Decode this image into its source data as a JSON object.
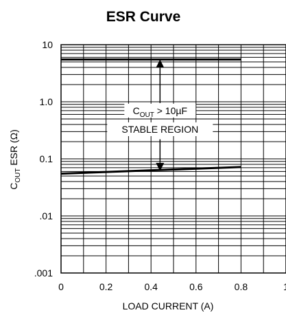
{
  "chart_data": {
    "type": "line",
    "title": "ESR Curve",
    "xlabel": "LOAD CURRENT (A)",
    "ylabel": {
      "main": "C",
      "sub": "OUT",
      "rest": " ESR (Ω)"
    },
    "xlim": [
      0,
      1
    ],
    "ylim": [
      0.001,
      10
    ],
    "yscale": "log",
    "grid": true,
    "x_ticks": [
      {
        "value": 0,
        "label": "0"
      },
      {
        "value": 0.2,
        "label": "0.2"
      },
      {
        "value": 0.4,
        "label": "0.4"
      },
      {
        "value": 0.6,
        "label": "0.6"
      },
      {
        "value": 0.8,
        "label": "0.8"
      },
      {
        "value": 1,
        "label": "1"
      }
    ],
    "y_ticks": [
      {
        "value": 10,
        "label": "10"
      },
      {
        "value": 1,
        "label": "1.0"
      },
      {
        "value": 0.1,
        "label": "0.1"
      },
      {
        "value": 0.01,
        "label": ".01"
      },
      {
        "value": 0.001,
        "label": ".001"
      }
    ],
    "series": [
      {
        "x": [
          0,
          0.8
        ],
        "values": [
          5.5,
          5.5
        ]
      },
      {
        "x": [
          0,
          0.8
        ],
        "values": [
          0.055,
          0.072
        ]
      }
    ],
    "annotations": [
      {
        "text_main": "C",
        "text_sub": "OUT",
        "text_rest": " > 10µF",
        "x": 0.44,
        "y": 0.7
      },
      {
        "text": "STABLE REGION",
        "x": 0.44,
        "y": 0.33
      }
    ],
    "arrows": [
      {
        "x": 0.44,
        "from_y": 0.95,
        "to_y": 5.5
      },
      {
        "x": 0.44,
        "from_y": 0.22,
        "to_y": 0.061
      }
    ]
  }
}
